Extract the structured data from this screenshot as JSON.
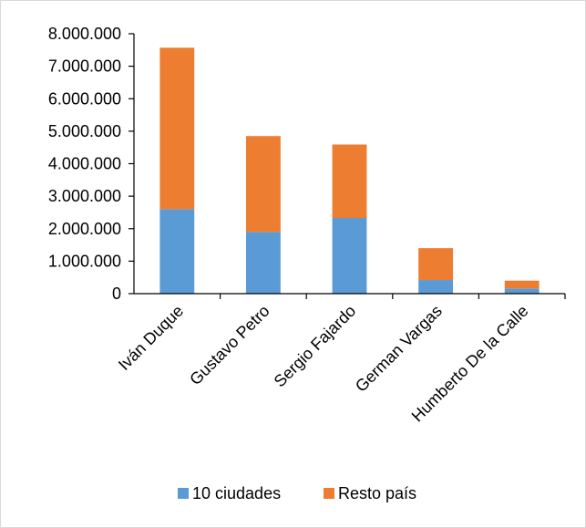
{
  "chart_data": {
    "type": "bar",
    "stacked": true,
    "title": "",
    "xlabel": "",
    "ylabel": "",
    "ylim": [
      0,
      8000000
    ],
    "yticks": [
      0,
      1000000,
      2000000,
      3000000,
      4000000,
      5000000,
      6000000,
      7000000,
      8000000
    ],
    "ytick_labels": [
      "0",
      "1.000.000",
      "2.000.000",
      "3.000.000",
      "4.000.000",
      "5.000.000",
      "6.000.000",
      "7.000.000",
      "8.000.000"
    ],
    "categories": [
      "Iván Duque",
      "Gustavo Petro",
      "Sergio Fajardo",
      "German Vargas",
      "Humberto De la Calle"
    ],
    "series": [
      {
        "name": "10 ciudades",
        "color": "#5b9bd5",
        "values": [
          2600000,
          1900000,
          2330000,
          420000,
          160000
        ]
      },
      {
        "name": "Resto país",
        "color": "#ed7d31",
        "values": [
          4970000,
          2950000,
          2260000,
          980000,
          240000
        ]
      }
    ],
    "grid": false,
    "legend_position": "bottom"
  }
}
